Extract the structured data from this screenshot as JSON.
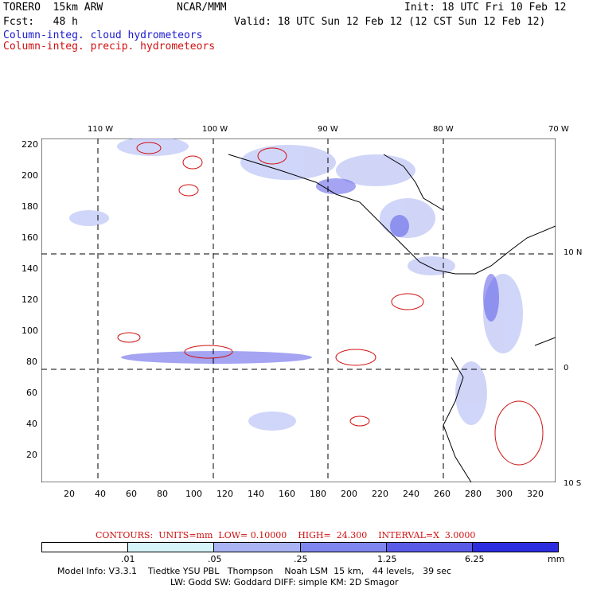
{
  "header": {
    "model": "TORERO  15km ARW",
    "org": "NCAR/MMM",
    "init": "Init: 18 UTC Fri 10 Feb 12",
    "fcst": "Fcst:   48 h",
    "valid": "Valid: 18 UTC Sun 12 Feb 12 (12 CST Sun 12 Feb 12)",
    "field1": "Column-integ. cloud hydrometeors",
    "field2": "Column-integ. precip. hydrometeors"
  },
  "map": {
    "lon_labels": [
      "110 W",
      "100 W",
      "90 W",
      "80 W",
      "70 W"
    ],
    "lat_labels": [
      "10 N",
      "0",
      "10 S"
    ],
    "y_ticks": [
      "220",
      "200",
      "180",
      "160",
      "140",
      "120",
      "100",
      "80",
      "60",
      "40",
      "20"
    ],
    "x_ticks": [
      "20",
      "40",
      "60",
      "80",
      "100",
      "120",
      "140",
      "160",
      "180",
      "200",
      "220",
      "240",
      "260",
      "280",
      "300",
      "320"
    ]
  },
  "contours": {
    "label": "CONTOURS:  UNITS=mm  LOW= 0.10000    HIGH=  24.300    INTERVAL=X  3.0000"
  },
  "colorbar": {
    "labels": [
      ".01",
      ".05",
      ".25",
      "1.25",
      "6.25"
    ],
    "unit": "mm",
    "colors": [
      "#ffffff",
      "#d6f5fb",
      "#aab4f4",
      "#7f85ee",
      "#5a5ae8",
      "#2d2de0"
    ]
  },
  "footer": {
    "line1": "Model Info: V3.3.1    Tiedtke YSU PBL   Thompson    Noah LSM  15 km,   44 levels,   39 sec",
    "line2": "LW: Godd SW: Goddard DIFF: simple KM: 2D Smagor"
  }
}
